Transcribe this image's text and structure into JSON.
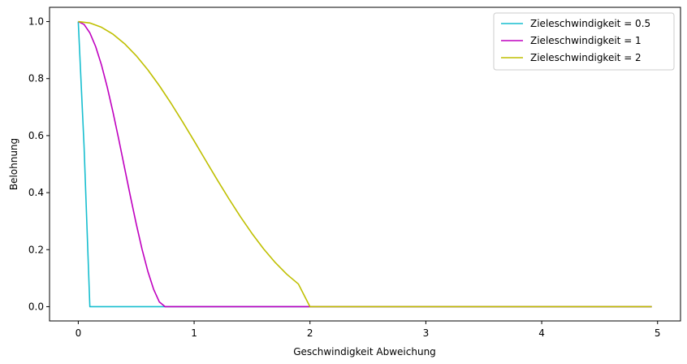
{
  "chart_data": {
    "type": "line",
    "title": "",
    "xlabel": "Geschwindigkeit Abweichung",
    "ylabel": "Belohnung",
    "xlim": [
      -0.248,
      5.198
    ],
    "ylim": [
      -0.05,
      1.05
    ],
    "xticks": [
      0,
      1,
      2,
      3,
      4,
      5
    ],
    "xtick_labels": [
      "0",
      "1",
      "2",
      "3",
      "4",
      "5"
    ],
    "yticks": [
      0.0,
      0.2,
      0.4,
      0.6,
      0.8,
      1.0
    ],
    "ytick_labels": [
      "0.0",
      "0.2",
      "0.4",
      "0.6",
      "0.8",
      "1.0"
    ],
    "grid": false,
    "legend_position": "top-right",
    "series": [
      {
        "name": "Zieleschwindigkeit = 0.5",
        "color": "#17becf",
        "x": [
          0,
          0.05,
          0.1,
          0.15,
          0.2,
          0.3,
          0.5,
          1,
          2,
          3,
          4,
          4.95
        ],
        "y": [
          1.0,
          0.5625,
          0.0,
          0.0,
          0.0,
          0.0,
          0.0,
          0.0,
          0.0,
          0.0,
          0.0,
          0.0
        ]
      },
      {
        "name": "Zieleschwindigkeit = 1",
        "color": "#bf00bf",
        "x": [
          0,
          0.05,
          0.1,
          0.15,
          0.2,
          0.25,
          0.3,
          0.35,
          0.4,
          0.45,
          0.5,
          0.55,
          0.6,
          0.65,
          0.7,
          0.75,
          0.8,
          0.85,
          0.9,
          0.95,
          1.0,
          1.5,
          2,
          3,
          4,
          4.95
        ],
        "y": [
          1.0,
          0.99,
          0.9604,
          0.9125,
          0.8482,
          0.7702,
          0.6816,
          0.5858,
          0.4863,
          0.3869,
          0.2911,
          0.2025,
          0.1247,
          0.0614,
          0.0165,
          0.0,
          0.0,
          0.0,
          0.0,
          0.0,
          0.0,
          0.0,
          0.0,
          0.0,
          0.0,
          0.0
        ]
      },
      {
        "name": "Zieleschwindigkeit = 2",
        "color": "#bfbf00",
        "x": [
          0,
          0.1,
          0.2,
          0.3,
          0.4,
          0.5,
          0.6,
          0.7,
          0.8,
          0.9,
          1.0,
          1.1,
          1.2,
          1.3,
          1.4,
          1.5,
          1.6,
          1.7,
          1.8,
          1.9,
          2.0,
          3,
          4,
          4.95
        ],
        "y": [
          1.0,
          0.995,
          0.9801,
          0.9557,
          0.9222,
          0.8803,
          0.8309,
          0.775,
          0.7138,
          0.6488,
          0.5813,
          0.5128,
          0.4447,
          0.3785,
          0.3153,
          0.2564,
          0.2026,
          0.1549,
          0.1137,
          0.0795,
          0.0,
          0.0,
          0.0,
          0.0
        ]
      }
    ]
  }
}
